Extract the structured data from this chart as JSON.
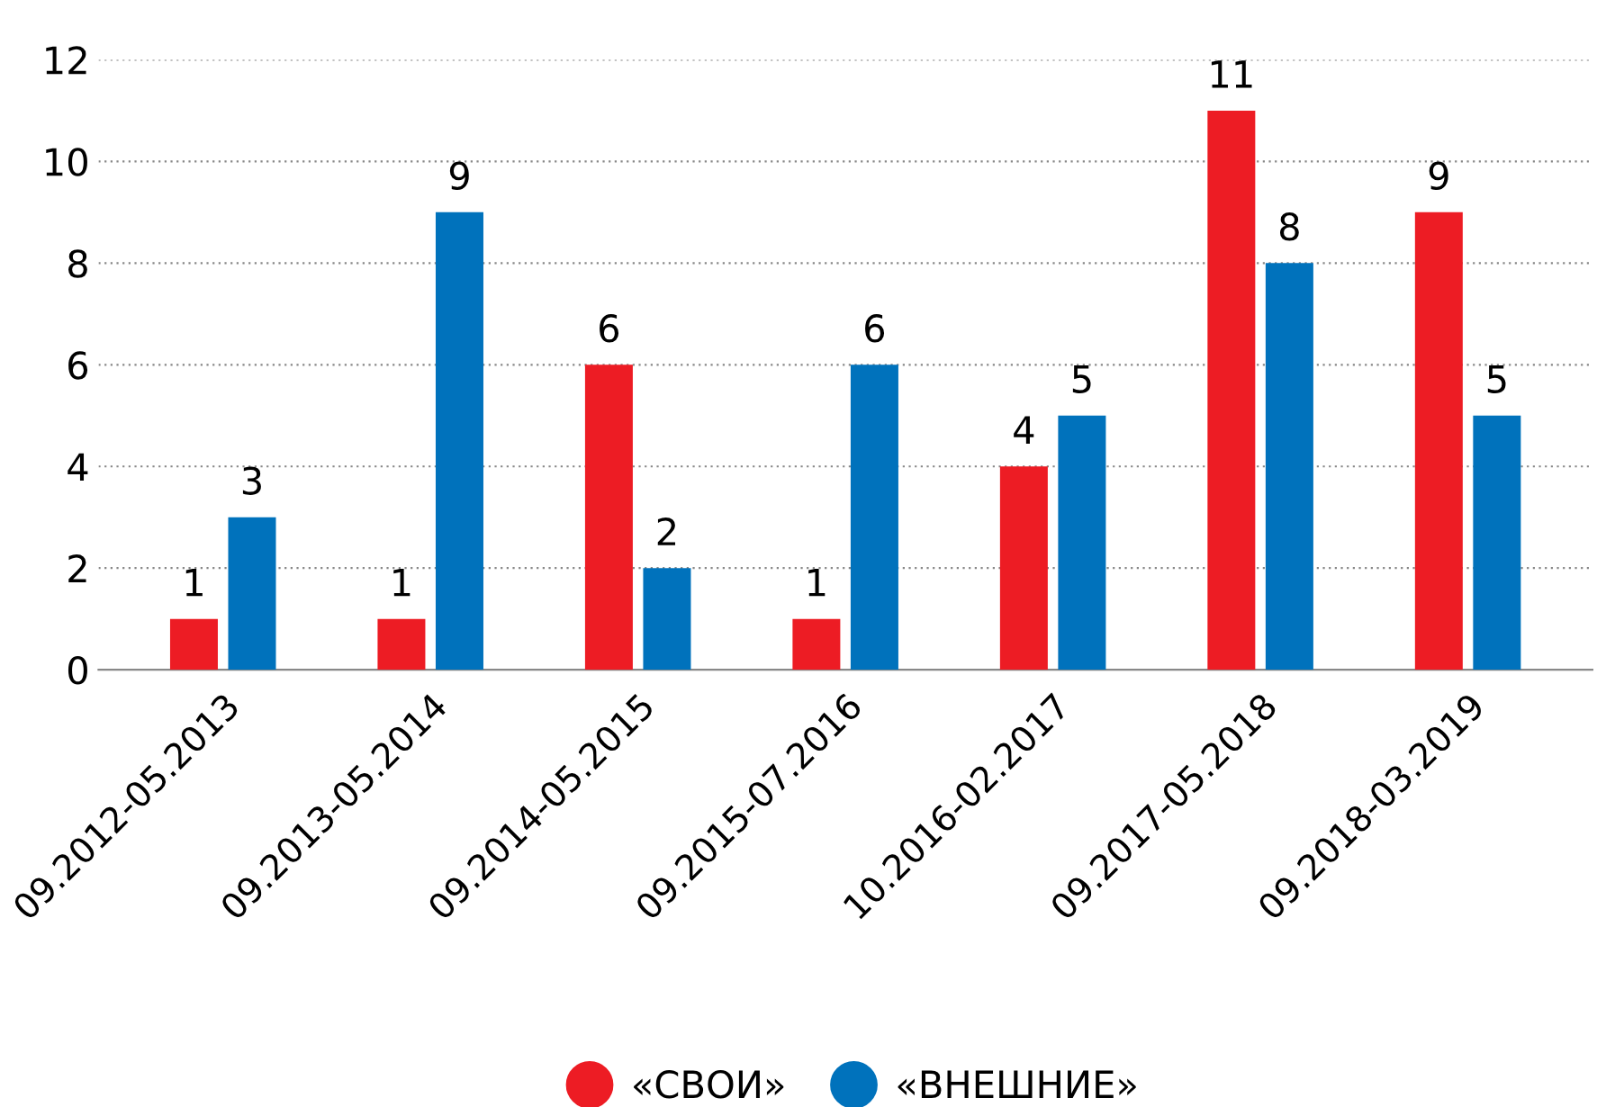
{
  "chart_data": {
    "type": "bar",
    "categories": [
      "09.2012-05.2013",
      "09.2013-05.2014",
      "09.2014-05.2015",
      "09.2015-07.2016",
      "10.2016-02.2017",
      "09.2017-05.2018",
      "09.2018-03.2019"
    ],
    "series": [
      {
        "name": "«СВОИ»",
        "color": "#ed1c24",
        "values": [
          1,
          1,
          6,
          1,
          4,
          11,
          9
        ]
      },
      {
        "name": "«ВНЕШНИЕ»",
        "color": "#0072bc",
        "values": [
          3,
          9,
          2,
          6,
          5,
          8,
          5
        ]
      }
    ],
    "ylim": [
      0,
      12
    ],
    "yticks": [
      0,
      2,
      4,
      6,
      8,
      10,
      12
    ],
    "grid": "y",
    "legend": "bottom",
    "data_labels": true,
    "marker": "circle"
  }
}
